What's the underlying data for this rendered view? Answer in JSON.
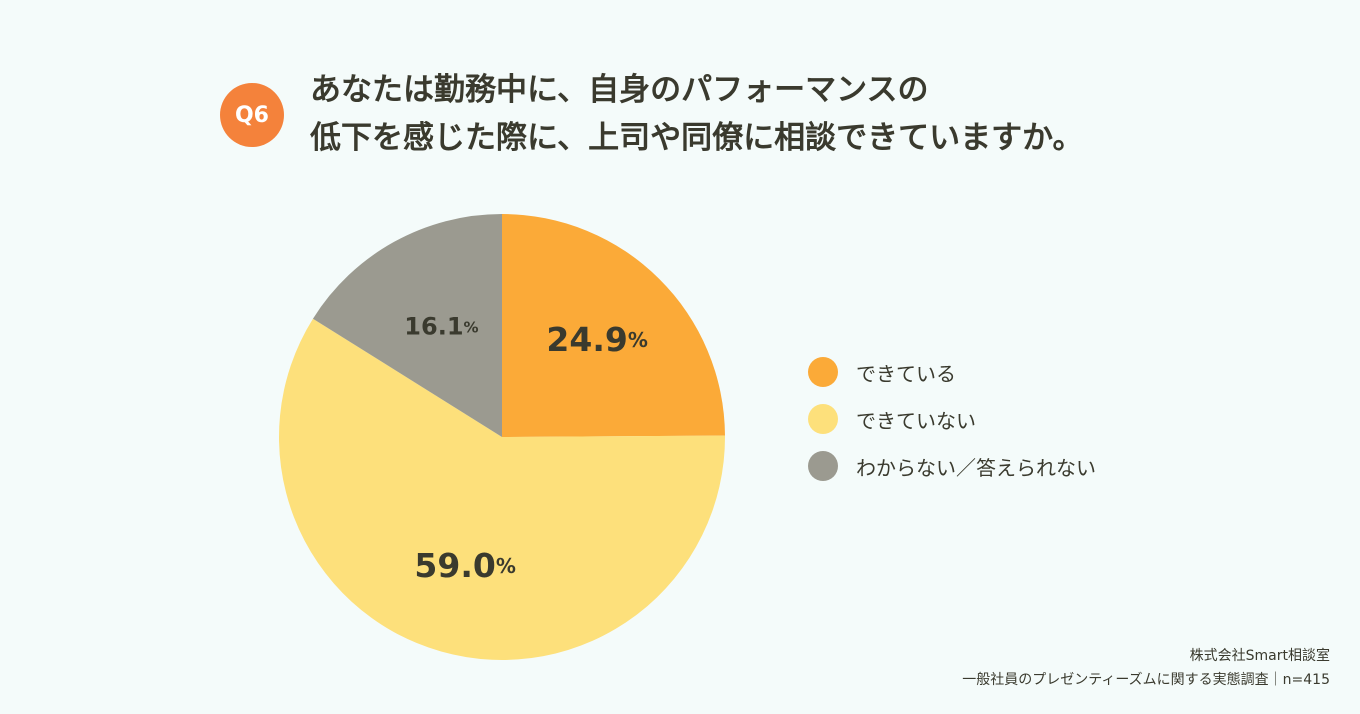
{
  "badge": "Q6",
  "title_lines": [
    "あなたは勤務中に、自身のパフォーマンスの",
    "低下を感じた際に、上司や同僚に相談できていますか。"
  ],
  "chart_data": {
    "type": "pie",
    "title": "あなたは勤務中に、自身のパフォーマンスの低下を感じた際に、上司や同僚に相談できていますか。",
    "categories": [
      "できている",
      "できていない",
      "わからない／答えられない"
    ],
    "values": [
      24.9,
      59.0,
      16.1
    ],
    "data_labels": [
      "24.9",
      "59.0",
      "16.1"
    ],
    "unit": "%",
    "colors": [
      "#fbaa38",
      "#fde07b",
      "#9b9a90"
    ],
    "start_angle": "12 o'clock",
    "direction": "clockwise",
    "legend_position": "right"
  },
  "footer": {
    "company": "株式会社Smart相談室",
    "survey": "一般社員のプレゼンティーズムに関する実態調査｜n=415"
  }
}
